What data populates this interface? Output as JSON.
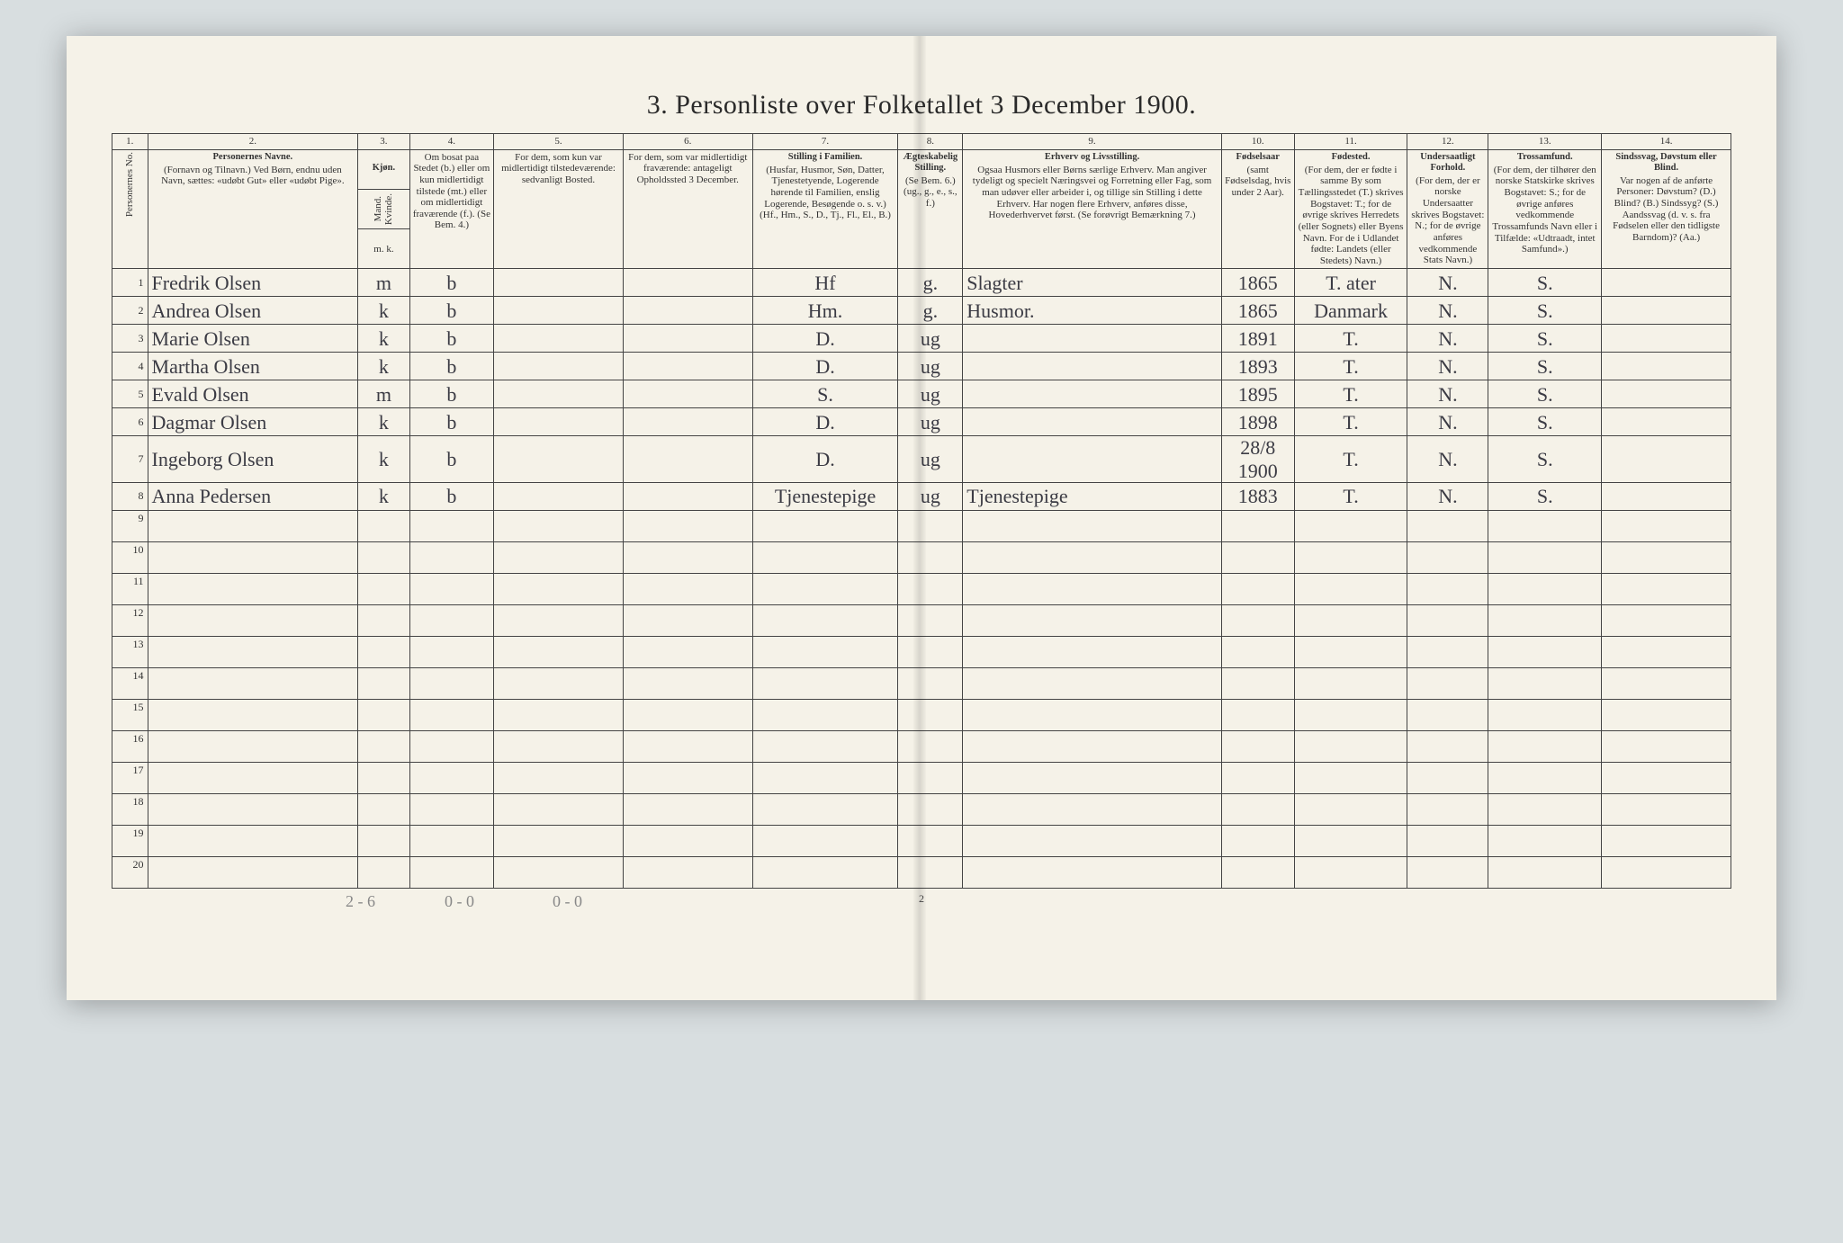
{
  "title": "3. Personliste over Folketallet 3 December 1900.",
  "page_number": "2",
  "columns": {
    "nums": [
      "1.",
      "2.",
      "3.",
      "4.",
      "5.",
      "6.",
      "7.",
      "8.",
      "9.",
      "10.",
      "11.",
      "12.",
      "13.",
      "14."
    ],
    "widths_pct": [
      2.2,
      13,
      3.2,
      5.2,
      8,
      8,
      9,
      4,
      16,
      4.5,
      7,
      5,
      7,
      8
    ],
    "c1": "Personernes No.",
    "c2_title": "Personernes Navne.",
    "c2_sub": "(Fornavn og Tilnavn.)\nVed Børn, endnu uden Navn, sættes: «udøbt Gut» eller «udøbt Pige».",
    "c3_title": "Kjøn.",
    "c3_sub_a": "Mand.",
    "c3_sub_b": "Kvinde.",
    "c3_mk": "m. k.",
    "c4": "Om bosat paa Stedet (b.) eller om kun midlertidigt tilstede (mt.) eller om midlertidigt fraværende (f.). (Se Bem. 4.)",
    "c5": "For dem, som kun var midlertidigt tilstedeværende:\nsedvanligt Bosted.",
    "c6": "For dem, som var midlertidigt fraværende:\nantageligt Opholdssted 3 December.",
    "c7_title": "Stilling i Familien.",
    "c7_sub": "(Husfar, Husmor, Søn, Datter, Tjenestetyende, Logerende hørende til Familien, enslig Logerende, Besøgende o. s. v.)\n(Hf., Hm., S., D., Tj., Fl., El., B.)",
    "c8_title": "Ægteskabelig Stilling.",
    "c8_sub": "(Se Bem. 6.)\n(ug., g., e., s., f.)",
    "c9_title": "Erhverv og Livsstilling.",
    "c9_sub": "Ogsaa Husmors eller Børns særlige Erhverv. Man angiver tydeligt og specielt Næringsvei og Forretning eller Fag, som man udøver eller arbeider i, og tillige sin Stilling i dette Erhverv. Har nogen flere Erhverv, anføres disse, Hovederhvervet først.\n(Se forøvrigt Bemærkning 7.)",
    "c10_title": "Fødselsaar",
    "c10_sub": "(samt Fødselsdag, hvis under 2 Aar).",
    "c11_title": "Fødested.",
    "c11_sub": "(For dem, der er fødte i samme By som Tællingsstedet (T.) skrives Bogstavet: T.; for de øvrige skrives Herredets (eller Sognets) eller Byens Navn. For de i Udlandet fødte: Landets (eller Stedets) Navn.)",
    "c12_title": "Undersaatligt Forhold.",
    "c12_sub": "(For dem, der er norske Undersaatter skrives Bogstavet: N.; for de øvrige anføres vedkommende Stats Navn.)",
    "c13_title": "Trossamfund.",
    "c13_sub": "(For dem, der tilhører den norske Statskirke skrives Bogstavet: S.; for de øvrige anføres vedkommende Trossamfunds Navn eller i Tilfælde: «Udtraadt, intet Samfund».)",
    "c14_title": "Sindssvag, Døvstum eller Blind.",
    "c14_sub": "Var nogen af de anførte Personer: Døvstum? (D.) Blind? (B.) Sindssyg? (S.) Aandssvag (d. v. s. fra Fødselen eller den tidligste Barndom)? (Aa.)"
  },
  "rows": [
    {
      "n": "1",
      "name": "Fredrik Olsen",
      "sex": "m",
      "res": "b",
      "c5": "",
      "c6": "",
      "fam": "Hf",
      "mar": "g.",
      "occ": "Slagter",
      "year": "1865",
      "birthplace": "T. ater",
      "nat": "N.",
      "rel": "S.",
      "c14": ""
    },
    {
      "n": "2",
      "name": "Andrea Olsen",
      "sex": "k",
      "res": "b",
      "c5": "",
      "c6": "",
      "fam": "Hm.",
      "mar": "g.",
      "occ": "Husmor.",
      "year": "1865",
      "birthplace": "Danmark",
      "nat": "N.",
      "rel": "S.",
      "c14": ""
    },
    {
      "n": "3",
      "name": "Marie Olsen",
      "sex": "k",
      "res": "b",
      "c5": "",
      "c6": "",
      "fam": "D.",
      "mar": "ug",
      "occ": "",
      "year": "1891",
      "birthplace": "T.",
      "nat": "N.",
      "rel": "S.",
      "c14": ""
    },
    {
      "n": "4",
      "name": "Martha Olsen",
      "sex": "k",
      "res": "b",
      "c5": "",
      "c6": "",
      "fam": "D.",
      "mar": "ug",
      "occ": "",
      "year": "1893",
      "birthplace": "T.",
      "nat": "N.",
      "rel": "S.",
      "c14": ""
    },
    {
      "n": "5",
      "name": "Evald Olsen",
      "sex": "m",
      "res": "b",
      "c5": "",
      "c6": "",
      "fam": "S.",
      "mar": "ug",
      "occ": "",
      "year": "1895",
      "birthplace": "T.",
      "nat": "N.",
      "rel": "S.",
      "c14": ""
    },
    {
      "n": "6",
      "name": "Dagmar Olsen",
      "sex": "k",
      "res": "b",
      "c5": "",
      "c6": "",
      "fam": "D.",
      "mar": "ug",
      "occ": "",
      "year": "1898",
      "birthplace": "T.",
      "nat": "N.",
      "rel": "S.",
      "c14": ""
    },
    {
      "n": "7",
      "name": "Ingeborg Olsen",
      "sex": "k",
      "res": "b",
      "c5": "",
      "c6": "",
      "fam": "D.",
      "mar": "ug",
      "occ": "",
      "year": "28/8 1900",
      "birthplace": "T.",
      "nat": "N.",
      "rel": "S.",
      "c14": ""
    },
    {
      "n": "8",
      "name": "Anna Pedersen",
      "sex": "k",
      "res": "b",
      "c5": "",
      "c6": "",
      "fam": "Tjenestepige",
      "mar": "ug",
      "occ": "Tjenestepige",
      "year": "1883",
      "birthplace": "T.",
      "nat": "N.",
      "rel": "S.",
      "c14": ""
    }
  ],
  "empty_rows": [
    "9",
    "10",
    "11",
    "12",
    "13",
    "14",
    "15",
    "16",
    "17",
    "18",
    "19",
    "20"
  ],
  "footer": {
    "a": "2 - 6",
    "b": "0 - 0",
    "c": "0 - 0"
  },
  "colors": {
    "page_bg": "#f5f2e8",
    "border": "#444444",
    "text": "#2a2a2a",
    "script": "#3b3b44",
    "footer_grey": "#888888",
    "outer_bg": "#d8dee0"
  }
}
